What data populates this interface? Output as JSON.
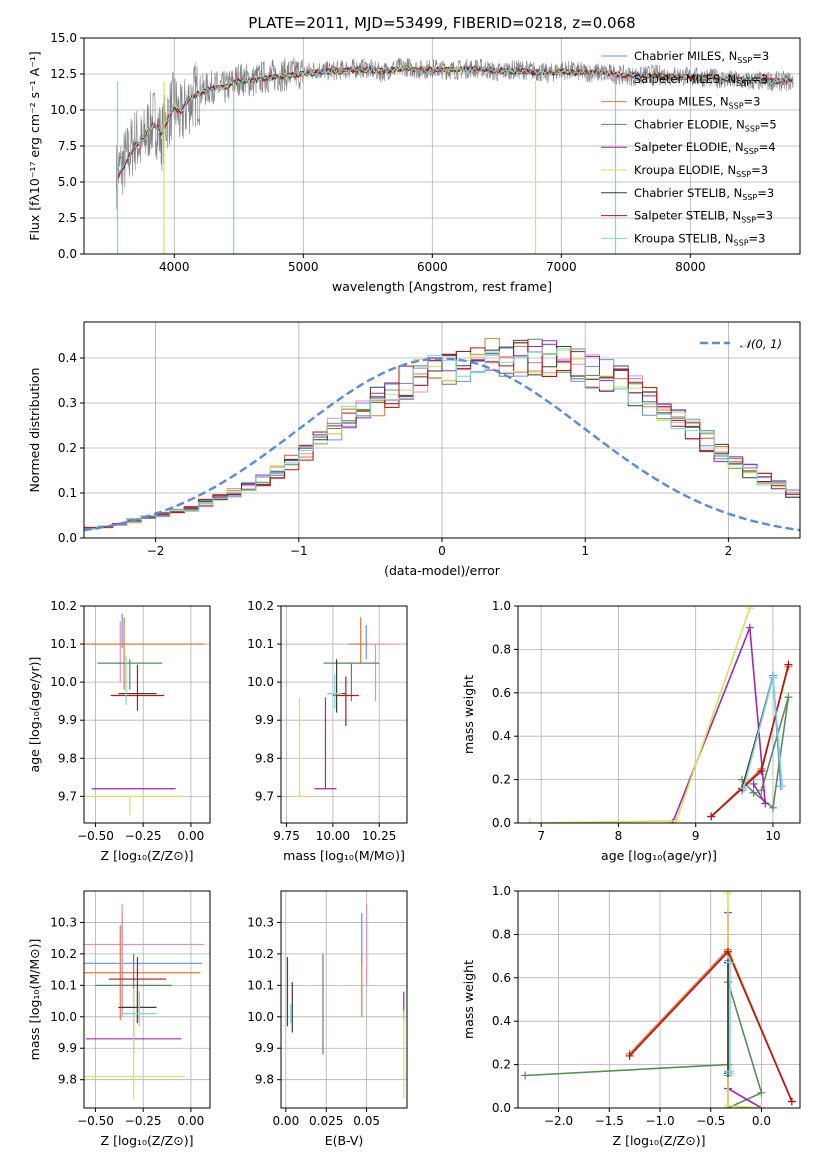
{
  "figure_title": "PLATE=2011, MJD=53499, FIBERID=0218, z=0.068",
  "models": [
    {
      "name": "Chabrier MILES, N_SSP=3",
      "label_base": "Chabrier MILES, N",
      "label_sub": "SSP",
      "label_tail": "=3",
      "color": "#6b8fe6"
    },
    {
      "name": "Salpeter MILES, N_SSP=3",
      "label_base": "Salpeter MILES, N",
      "label_sub": "SSP",
      "label_tail": "=3",
      "color": "#e88fb8"
    },
    {
      "name": "Kroupa MILES, N_SSP=3",
      "label_base": "Kroupa MILES, N",
      "label_sub": "SSP",
      "label_tail": "=3",
      "color": "#e07a3a"
    },
    {
      "name": "Chabrier ELODIE, N_SSP=5",
      "label_base": "Chabrier ELODIE, N",
      "label_sub": "SSP",
      "label_tail": "=5",
      "color": "#5a8a5e"
    },
    {
      "name": "Salpeter ELODIE, N_SSP=4",
      "label_base": "Salpeter ELODIE, N",
      "label_sub": "SSP",
      "label_tail": "=4",
      "color": "#9a2ab0"
    },
    {
      "name": "Kroupa ELODIE, N_SSP=3",
      "label_base": "Kroupa ELODIE, N",
      "label_sub": "SSP",
      "label_tail": "=3",
      "color": "#d8e05c"
    },
    {
      "name": "Chabrier STELIB, N_SSP=3",
      "label_base": "Chabrier STELIB, N",
      "label_sub": "SSP",
      "label_tail": "=3",
      "color": "#3a3a3a"
    },
    {
      "name": "Salpeter STELIB, N_SSP=3",
      "label_base": "Salpeter STELIB, N",
      "label_sub": "SSP",
      "label_tail": "=3",
      "color": "#b01818"
    },
    {
      "name": "Kroupa STELIB, N_SSP=3",
      "label_base": "Kroupa STELIB, N",
      "label_sub": "SSP",
      "label_tail": "=3",
      "color": "#7fd6d6"
    }
  ],
  "chart_data": [
    {
      "id": "spectrum",
      "type": "line",
      "xlabel": "wavelength [Angstrom, rest frame]",
      "ylabel": "Flux [fλ10⁻¹⁷ erg cm⁻² s⁻¹ A⁻¹]",
      "xlim": [
        3300,
        8850
      ],
      "ylim": [
        0,
        15
      ],
      "xticks": [
        4000,
        5000,
        6000,
        7000,
        8000
      ],
      "yticks": [
        0.0,
        2.5,
        5.0,
        7.5,
        10.0,
        12.5,
        15.0
      ],
      "ytick_labels": [
        "0.0",
        "2.5",
        "5.0",
        "7.5",
        "10.0",
        "12.5",
        "15.0"
      ],
      "data_x": [
        3550,
        3600,
        3650,
        3700,
        3750,
        3800,
        3850,
        3900,
        3950,
        4000,
        4050,
        4100,
        4150,
        4200,
        4300,
        4400,
        4500,
        4600,
        4700,
        4800,
        4900,
        5000,
        5100,
        5200,
        5300,
        5400,
        5500,
        5600,
        5700,
        5800,
        5900,
        6000,
        6100,
        6200,
        6300,
        6400,
        6500,
        6600,
        6700,
        6800,
        6900,
        7000,
        7100,
        7200,
        7300,
        7400,
        7500,
        7600,
        7700,
        7800,
        7900,
        8000,
        8200,
        8400,
        8600,
        8800
      ],
      "data_y": [
        5.5,
        6.2,
        7.0,
        8.0,
        7.5,
        8.8,
        9.3,
        8.0,
        9.6,
        10.5,
        9.4,
        10.4,
        11.0,
        11.3,
        11.6,
        11.5,
        12.2,
        12.0,
        12.3,
        12.4,
        12.5,
        12.6,
        12.8,
        12.7,
        12.8,
        12.9,
        12.9,
        12.6,
        12.9,
        13.0,
        12.8,
        12.9,
        12.8,
        12.8,
        12.9,
        12.9,
        12.6,
        12.8,
        12.8,
        12.7,
        12.5,
        12.8,
        12.7,
        12.6,
        12.6,
        12.5,
        12.4,
        12.3,
        12.5,
        12.4,
        12.4,
        12.3,
        12.2,
        12.0,
        12.0,
        12.0
      ],
      "model_y": [
        5.2,
        6.0,
        6.8,
        7.6,
        7.8,
        8.6,
        9.0,
        8.4,
        9.4,
        10.3,
        9.8,
        10.6,
        11.0,
        11.2,
        11.5,
        11.6,
        12.0,
        12.1,
        12.2,
        12.3,
        12.4,
        12.5,
        12.6,
        12.7,
        12.7,
        12.8,
        12.8,
        12.7,
        12.8,
        12.9,
        12.8,
        12.8,
        12.8,
        12.8,
        12.8,
        12.8,
        12.7,
        12.7,
        12.7,
        12.6,
        12.6,
        12.7,
        12.6,
        12.6,
        12.6,
        12.5,
        12.4,
        12.4,
        12.4,
        12.3,
        12.3,
        12.3,
        12.2,
        12.1,
        12.0,
        12.0
      ],
      "data_color": "#808080"
    },
    {
      "id": "residuals",
      "type": "histogram",
      "xlabel": "(data-model)/error",
      "ylabel": "Normed distribution",
      "xlim": [
        -2.5,
        2.5
      ],
      "ylim": [
        0,
        0.48
      ],
      "xticks": [
        -2,
        -1,
        0,
        1,
        2
      ],
      "xtick_labels": [
        "−2",
        "−1",
        "0",
        "1",
        "2"
      ],
      "yticks": [
        0.0,
        0.1,
        0.2,
        0.3,
        0.4
      ],
      "ytick_labels": [
        "0.0",
        "0.1",
        "0.2",
        "0.3",
        "0.4"
      ],
      "bin_edges_start": -2.5,
      "bin_width": 0.1,
      "base_values": [
        0.022,
        0.025,
        0.03,
        0.038,
        0.045,
        0.052,
        0.058,
        0.065,
        0.078,
        0.09,
        0.1,
        0.115,
        0.13,
        0.148,
        0.17,
        0.19,
        0.215,
        0.24,
        0.265,
        0.285,
        0.305,
        0.325,
        0.345,
        0.36,
        0.372,
        0.382,
        0.39,
        0.396,
        0.4,
        0.403,
        0.403,
        0.4,
        0.396,
        0.39,
        0.382,
        0.372,
        0.36,
        0.345,
        0.325,
        0.305,
        0.285,
        0.265,
        0.24,
        0.215,
        0.19,
        0.17,
        0.148,
        0.13,
        0.115,
        0.1
      ],
      "gaussian": {
        "name": "𝒩(0, 1)",
        "label": "𝒩(0, 1)",
        "color": "#5b8bd8",
        "mean": 0,
        "sigma": 1
      }
    },
    {
      "id": "age_vs_Z",
      "type": "errorbar",
      "xlabel": "Z [log₁₀(Z/Z⊙)]",
      "ylabel": "age  [log₁₀(age/yr)]",
      "xlim": [
        -0.56,
        0.1
      ],
      "ylim": [
        9.63,
        10.2
      ],
      "xticks": [
        -0.5,
        -0.25,
        0.0
      ],
      "xtick_labels": [
        "−0.50",
        "−0.25",
        "0.00"
      ],
      "yticks": [
        9.7,
        9.8,
        9.9,
        10.0,
        10.1,
        10.2
      ],
      "ytick_labels": [
        "9.7",
        "9.8",
        "9.9",
        "10.0",
        "10.1",
        "10.2"
      ],
      "points": [
        {
          "x": -0.36,
          "xerr": 0.42,
          "y": 10.1,
          "yerr": [
            0.01,
            0.08
          ]
        },
        {
          "x": -0.37,
          "xerr": 0.45,
          "y": 10.1,
          "yerr": [
            0.1,
            0.06
          ]
        },
        {
          "x": -0.35,
          "xerr": 0.42,
          "y": 10.1,
          "yerr": [
            0.12,
            0.07
          ]
        },
        {
          "x": -0.32,
          "xerr": 0.17,
          "y": 10.05,
          "yerr": [
            0.07,
            0.01
          ]
        },
        {
          "x": -0.3,
          "xerr": 0.22,
          "y": 9.72,
          "yerr": [
            0.0,
            0.0
          ]
        },
        {
          "x": -0.32,
          "xerr": 0.28,
          "y": 9.7,
          "yerr": [
            0.05,
            0.0
          ]
        },
        {
          "x": -0.28,
          "xerr": 0.1,
          "y": 9.97,
          "yerr": [
            0.0,
            0.0
          ]
        },
        {
          "x": -0.28,
          "xerr": 0.14,
          "y": 9.965,
          "yerr": [
            0.04,
            0.08
          ]
        },
        {
          "x": -0.34,
          "xerr": 0.0,
          "y": 10.02,
          "yerr": [
            0.08,
            0.05
          ]
        }
      ]
    },
    {
      "id": "age_vs_mass",
      "type": "errorbar",
      "xlabel": "mass [log₁₀(M/M⊙)]",
      "ylabel": "",
      "xlim": [
        9.72,
        10.4
      ],
      "ylim": [
        9.63,
        10.2
      ],
      "xticks": [
        9.75,
        10.0,
        10.25
      ],
      "xtick_labels": [
        "9.75",
        "10.00",
        "10.25"
      ],
      "yticks": [
        9.7,
        9.8,
        9.9,
        10.0,
        10.1,
        10.2
      ],
      "ytick_labels": [
        "9.7",
        "9.8",
        "9.9",
        "10.0",
        "10.1",
        "10.2"
      ],
      "points": [
        {
          "x": 10.18,
          "xerr": 0.1,
          "y": 10.1,
          "yerr": [
            0.04,
            0.05
          ]
        },
        {
          "x": 10.23,
          "xerr": 0.12,
          "y": 10.1,
          "yerr": [
            0.15,
            0.0
          ]
        },
        {
          "x": 10.15,
          "xerr": 0.04,
          "y": 10.1,
          "yerr": [
            0.05,
            0.07
          ]
        },
        {
          "x": 10.1,
          "xerr": 0.15,
          "y": 10.05,
          "yerr": [
            0.1,
            0.0
          ]
        },
        {
          "x": 9.96,
          "xerr": 0.06,
          "y": 9.72,
          "yerr": [
            0.0,
            0.24
          ]
        },
        {
          "x": 9.82,
          "xerr": 0.04,
          "y": 9.7,
          "yerr": [
            0.0,
            0.26
          ]
        },
        {
          "x": 10.02,
          "xerr": 0.05,
          "y": 9.97,
          "yerr": [
            0.05,
            0.09
          ]
        },
        {
          "x": 10.07,
          "xerr": 0.07,
          "y": 9.965,
          "yerr": [
            0.08,
            0.05
          ]
        },
        {
          "x": 10.01,
          "xerr": 0.04,
          "y": 9.97,
          "yerr": [
            0.04,
            0.05
          ]
        }
      ]
    },
    {
      "id": "mass_weight_vs_age",
      "type": "line",
      "xlabel": "age  [log₁₀(age/yr)]",
      "ylabel": "mass weight",
      "xlim": [
        6.7,
        10.35
      ],
      "ylim": [
        0,
        1
      ],
      "xticks": [
        7,
        8,
        9,
        10
      ],
      "xtick_labels": [
        "7",
        "8",
        "9",
        "10"
      ],
      "yticks": [
        0.0,
        0.2,
        0.4,
        0.6,
        0.8,
        1.0
      ],
      "ytick_labels": [
        "0.0",
        "0.2",
        "0.4",
        "0.6",
        "0.8",
        "1.0"
      ],
      "series": [
        {
          "x": [
            9.6,
            10.0,
            10.1
          ],
          "y": [
            0.15,
            0.68,
            0.17
          ]
        },
        {
          "x": [
            9.2,
            9.85,
            10.2
          ],
          "y": [
            0.03,
            0.24,
            0.73
          ]
        },
        {
          "x": [
            9.2,
            9.85,
            10.2
          ],
          "y": [
            0.03,
            0.25,
            0.72
          ]
        },
        {
          "x": [
            9.6,
            9.75,
            10.0,
            10.2,
            9.85
          ],
          "y": [
            0.2,
            0.14,
            0.07,
            0.58,
            0.15
          ]
        },
        {
          "x": [
            8.7,
            9.7,
            9.9,
            9.75
          ],
          "y": [
            0.0,
            0.9,
            0.09,
            0.18
          ]
        },
        {
          "x": [
            6.85,
            8.75,
            9.7
          ],
          "y": [
            0.0,
            0.01,
            0.99
          ]
        },
        {
          "x": [
            9.6,
            10.0
          ],
          "y": [
            0.16,
            0.67
          ]
        },
        {
          "x": [
            9.2,
            9.85,
            10.2
          ],
          "y": [
            0.03,
            0.24,
            0.73
          ]
        },
        {
          "x": [
            9.62,
            10.0,
            10.12
          ],
          "y": [
            0.16,
            0.67,
            0.17
          ]
        }
      ]
    },
    {
      "id": "mass_vs_Z",
      "type": "errorbar",
      "xlabel": "Z [log₁₀(Z/Z⊙)]",
      "ylabel": "mass [log₁₀(M/M⊙)]",
      "xlim": [
        -0.56,
        0.1
      ],
      "ylim": [
        9.71,
        10.4
      ],
      "xticks": [
        -0.5,
        -0.25,
        0.0
      ],
      "xtick_labels": [
        "−0.50",
        "−0.25",
        "0.00"
      ],
      "yticks": [
        9.8,
        9.9,
        10.0,
        10.1,
        10.2,
        10.3
      ],
      "ytick_labels": [
        "9.8",
        "9.9",
        "10.0",
        "10.1",
        "10.2",
        "10.3"
      ],
      "points": [
        {
          "x": -0.36,
          "xerr": 0.42,
          "y": 10.17,
          "yerr": [
            0.15,
            0.16
          ]
        },
        {
          "x": -0.36,
          "xerr": 0.43,
          "y": 10.23,
          "yerr": [
            0.23,
            0.13
          ]
        },
        {
          "x": -0.37,
          "xerr": 0.42,
          "y": 10.14,
          "yerr": [
            0.15,
            0.15
          ]
        },
        {
          "x": -0.3,
          "xerr": 0.2,
          "y": 10.1,
          "yerr": [
            0.22,
            0.1
          ]
        },
        {
          "x": -0.3,
          "xerr": 0.25,
          "y": 9.93,
          "yerr": [
            0.0,
            0.0
          ]
        },
        {
          "x": -0.3,
          "xerr": 0.27,
          "y": 9.81,
          "yerr": [
            0.07,
            0.28
          ]
        },
        {
          "x": -0.28,
          "xerr": 0.1,
          "y": 10.03,
          "yerr": [
            0.05,
            0.05
          ]
        },
        {
          "x": -0.28,
          "xerr": 0.15,
          "y": 10.12,
          "yerr": [
            0.14,
            0.07
          ]
        },
        {
          "x": -0.27,
          "xerr": 0.09,
          "y": 10.01,
          "yerr": [
            0.04,
            0.07
          ]
        }
      ]
    },
    {
      "id": "mass_vs_ebv",
      "type": "errorbar",
      "xlabel": "E(B-V)",
      "ylabel": "",
      "xlim": [
        -0.003,
        0.075
      ],
      "ylim": [
        9.71,
        10.4
      ],
      "xticks": [
        0.0,
        0.025,
        0.05
      ],
      "xtick_labels": [
        "0.00",
        "0.025",
        "0.05"
      ],
      "yticks": [
        9.8,
        9.9,
        10.0,
        10.1,
        10.2,
        10.3
      ],
      "ytick_labels": [
        "9.8",
        "9.9",
        "10.0",
        "10.1",
        "10.2",
        "10.3"
      ],
      "points": [
        {
          "x": 0.047,
          "xerr": 0.0,
          "y": 10.17,
          "yerr": [
            0.0,
            0.16
          ]
        },
        {
          "x": 0.05,
          "xerr": 0.0,
          "y": 10.23,
          "yerr": [
            0.13,
            0.13
          ]
        },
        {
          "x": 0.047,
          "xerr": 0.0,
          "y": 10.14,
          "yerr": [
            0.14,
            0.06
          ]
        },
        {
          "x": 0.023,
          "xerr": 0.0,
          "y": 10.1,
          "yerr": [
            0.22,
            0.1
          ]
        },
        {
          "x": 0.073,
          "xerr": 0.0,
          "y": 10.03,
          "yerr": [
            0.04,
            0.05
          ]
        },
        {
          "x": 0.073,
          "xerr": 0.0,
          "y": 9.81,
          "yerr": [
            0.07,
            0.21
          ]
        },
        {
          "x": 0.004,
          "xerr": 0.0,
          "y": 10.03,
          "yerr": [
            0.08,
            0.08
          ]
        },
        {
          "x": 0.001,
          "xerr": 0.0,
          "y": 10.12,
          "yerr": [
            0.15,
            0.07
          ]
        },
        {
          "x": 0.003,
          "xerr": 0.0,
          "y": 10.01,
          "yerr": [
            0.03,
            0.03
          ]
        }
      ]
    },
    {
      "id": "mass_weight_vs_Z",
      "type": "line",
      "xlabel": "Z [log₁₀(Z/Z⊙)]",
      "ylabel": "mass weight",
      "xlim": [
        -2.4,
        0.38
      ],
      "ylim": [
        0,
        1
      ],
      "xticks": [
        -2.0,
        -1.5,
        -1.0,
        -0.5,
        0.0
      ],
      "xtick_labels": [
        "−2.0",
        "−1.5",
        "−1.0",
        "−0.5",
        "0.0"
      ],
      "yticks": [
        0.0,
        0.2,
        0.4,
        0.6,
        0.8,
        1.0
      ],
      "ytick_labels": [
        "0.0",
        "0.2",
        "0.4",
        "0.6",
        "0.8",
        "1.0"
      ],
      "series": [
        {
          "x": [
            -0.33,
            -0.33,
            -0.33
          ],
          "y": [
            0.15,
            0.68,
            0.17
          ]
        },
        {
          "x": [
            -1.3,
            -0.33,
            0.3
          ],
          "y": [
            0.24,
            0.72,
            0.03
          ]
        },
        {
          "x": [
            -1.3,
            -0.33,
            0.3
          ],
          "y": [
            0.25,
            0.73,
            0.03
          ]
        },
        {
          "x": [
            -2.33,
            -0.33,
            -0.33,
            0.0,
            -0.33
          ],
          "y": [
            0.15,
            0.2,
            0.0,
            0.07,
            0.58
          ]
        },
        {
          "x": [
            -0.33,
            -0.33,
            0.0
          ],
          "y": [
            0.9,
            0.09,
            0.0
          ]
        },
        {
          "x": [
            -0.33,
            -0.33,
            0.0
          ],
          "y": [
            0.99,
            0.01,
            0.0
          ]
        },
        {
          "x": [
            -0.33,
            -0.33
          ],
          "y": [
            0.16,
            0.67
          ]
        },
        {
          "x": [
            -1.3,
            -0.33,
            0.3
          ],
          "y": [
            0.24,
            0.72,
            0.03
          ]
        },
        {
          "x": [
            -0.31,
            -0.31,
            -0.31
          ],
          "y": [
            0.16,
            0.67,
            0.17
          ]
        }
      ]
    }
  ]
}
